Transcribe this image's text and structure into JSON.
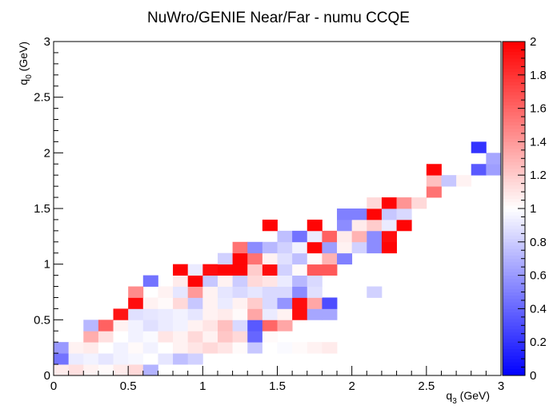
{
  "chart_data": {
    "type": "heatmap",
    "title": "NuWro/GENIE Near/Far - numu CCQE",
    "xlabel": {
      "main": "q",
      "sub": "3",
      "unit": " (GeV)"
    },
    "ylabel": {
      "main": "q",
      "sub": "0",
      "unit": " (GeV)"
    },
    "xlim": [
      0,
      3
    ],
    "ylim": [
      0,
      3
    ],
    "zlim": [
      0,
      2
    ],
    "nbins_x": 30,
    "nbins_y": 30,
    "x_ticks": [
      "0",
      "0.5",
      "1",
      "1.5",
      "2",
      "2.5",
      "3"
    ],
    "y_ticks": [
      "0",
      "0.5",
      "1",
      "1.5",
      "2",
      "2.5",
      "3"
    ],
    "z_ticks": [
      "0",
      "0.2",
      "0.4",
      "0.6",
      "0.8",
      "1",
      "1.2",
      "1.4",
      "1.6",
      "1.8",
      "2"
    ],
    "colorscale": {
      "low": "#0000ff",
      "mid": "#ffffff",
      "high": "#ff0000"
    },
    "cells": [
      [
        0,
        0,
        1.08
      ],
      [
        1,
        0,
        1.12
      ],
      [
        2,
        0,
        1.05
      ],
      [
        3,
        0,
        1.02
      ],
      [
        4,
        0,
        1.08
      ],
      [
        5,
        0,
        1.15
      ],
      [
        6,
        0,
        0.7
      ],
      [
        0,
        1,
        0.45
      ],
      [
        1,
        1,
        0.92
      ],
      [
        2,
        1,
        0.95
      ],
      [
        3,
        1,
        0.9
      ],
      [
        4,
        1,
        0.95
      ],
      [
        5,
        1,
        0.97
      ],
      [
        6,
        1,
        1.0
      ],
      [
        7,
        1,
        0.9
      ],
      [
        8,
        1,
        0.75
      ],
      [
        9,
        1,
        0.82
      ],
      [
        0,
        2,
        0.6
      ],
      [
        1,
        2,
        1.05
      ],
      [
        2,
        2,
        1.08
      ],
      [
        3,
        2,
        1.0
      ],
      [
        4,
        2,
        0.95
      ],
      [
        5,
        2,
        1.02
      ],
      [
        6,
        2,
        0.95
      ],
      [
        7,
        2,
        1.0
      ],
      [
        8,
        2,
        1.05
      ],
      [
        9,
        2,
        1.1
      ],
      [
        10,
        2,
        1.15
      ],
      [
        11,
        2,
        1.1
      ],
      [
        12,
        2,
        1.02
      ],
      [
        13,
        2,
        0.78
      ],
      [
        14,
        2,
        1.0
      ],
      [
        15,
        2,
        0.98
      ],
      [
        16,
        2,
        1.02
      ],
      [
        17,
        2,
        1.05
      ],
      [
        18,
        2,
        1.08
      ],
      [
        2,
        3,
        1.32
      ],
      [
        3,
        3,
        1.12
      ],
      [
        4,
        3,
        1.0
      ],
      [
        5,
        3,
        0.95
      ],
      [
        6,
        3,
        0.98
      ],
      [
        7,
        3,
        1.1
      ],
      [
        8,
        3,
        1.05
      ],
      [
        9,
        3,
        1.15
      ],
      [
        10,
        3,
        1.05
      ],
      [
        11,
        3,
        1.22
      ],
      [
        12,
        3,
        1.15
      ],
      [
        13,
        3,
        0.4
      ],
      [
        14,
        3,
        1.02
      ],
      [
        2,
        4,
        0.72
      ],
      [
        3,
        4,
        1.62
      ],
      [
        4,
        4,
        1.05
      ],
      [
        5,
        4,
        0.95
      ],
      [
        6,
        4,
        0.88
      ],
      [
        7,
        4,
        0.92
      ],
      [
        8,
        4,
        0.95
      ],
      [
        9,
        4,
        1.05
      ],
      [
        10,
        4,
        1.1
      ],
      [
        11,
        4,
        1.25
      ],
      [
        12,
        4,
        0.85
      ],
      [
        13,
        4,
        0.35
      ],
      [
        14,
        4,
        1.6
      ],
      [
        15,
        4,
        1.35
      ],
      [
        4,
        5,
        1.92
      ],
      [
        5,
        5,
        0.88
      ],
      [
        6,
        5,
        0.9
      ],
      [
        7,
        5,
        0.92
      ],
      [
        8,
        5,
        0.95
      ],
      [
        9,
        5,
        0.9
      ],
      [
        10,
        5,
        1.05
      ],
      [
        11,
        5,
        1.08
      ],
      [
        12,
        5,
        1.02
      ],
      [
        13,
        5,
        1.35
      ],
      [
        14,
        5,
        0.92
      ],
      [
        15,
        5,
        1.05
      ],
      [
        16,
        5,
        1.95
      ],
      [
        17,
        5,
        0.65
      ],
      [
        18,
        5,
        0.65
      ],
      [
        5,
        6,
        1.95
      ],
      [
        6,
        6,
        1.05
      ],
      [
        7,
        6,
        1.02
      ],
      [
        8,
        6,
        1.15
      ],
      [
        9,
        6,
        0.78
      ],
      [
        10,
        6,
        1.05
      ],
      [
        11,
        6,
        0.92
      ],
      [
        12,
        6,
        1.05
      ],
      [
        13,
        6,
        1.2
      ],
      [
        14,
        6,
        0.85
      ],
      [
        15,
        6,
        0.58
      ],
      [
        16,
        6,
        1.95
      ],
      [
        17,
        6,
        1.35
      ],
      [
        18,
        6,
        0.3
      ],
      [
        5,
        7,
        1.45
      ],
      [
        7,
        7,
        1.05
      ],
      [
        8,
        7,
        0.9
      ],
      [
        9,
        7,
        1.4
      ],
      [
        10,
        7,
        1.05
      ],
      [
        11,
        7,
        0.9
      ],
      [
        12,
        7,
        0.85
      ],
      [
        13,
        7,
        0.9
      ],
      [
        14,
        7,
        0.85
      ],
      [
        15,
        7,
        0.85
      ],
      [
        16,
        7,
        0.55
      ],
      [
        17,
        7,
        0.88
      ],
      [
        21,
        7,
        0.82
      ],
      [
        6,
        8,
        0.45
      ],
      [
        8,
        8,
        1.08
      ],
      [
        9,
        8,
        1.98
      ],
      [
        10,
        8,
        0.78
      ],
      [
        11,
        8,
        1.05
      ],
      [
        12,
        8,
        0.8
      ],
      [
        13,
        8,
        1.15
      ],
      [
        14,
        8,
        1.1
      ],
      [
        15,
        8,
        0.92
      ],
      [
        16,
        8,
        0.72
      ],
      [
        17,
        8,
        0.85
      ],
      [
        8,
        9,
        1.98
      ],
      [
        9,
        9,
        0.92
      ],
      [
        10,
        9,
        1.95
      ],
      [
        11,
        9,
        1.98
      ],
      [
        12,
        9,
        1.98
      ],
      [
        13,
        9,
        1.2
      ],
      [
        14,
        9,
        1.95
      ],
      [
        15,
        9,
        0.82
      ],
      [
        16,
        9,
        1.02
      ],
      [
        17,
        9,
        1.65
      ],
      [
        18,
        9,
        1.65
      ],
      [
        11,
        10,
        0.82
      ],
      [
        12,
        10,
        1.98
      ],
      [
        13,
        10,
        1.55
      ],
      [
        14,
        10,
        1.05
      ],
      [
        15,
        10,
        0.88
      ],
      [
        16,
        10,
        0.75
      ],
      [
        17,
        10,
        1.02
      ],
      [
        18,
        10,
        1.3
      ],
      [
        19,
        10,
        0.5
      ],
      [
        12,
        11,
        1.55
      ],
      [
        13,
        11,
        0.55
      ],
      [
        14,
        11,
        0.72
      ],
      [
        15,
        11,
        0.82
      ],
      [
        16,
        11,
        0.95
      ],
      [
        17,
        11,
        1.98
      ],
      [
        18,
        11,
        0.62
      ],
      [
        19,
        11,
        1.05
      ],
      [
        20,
        11,
        0.82
      ],
      [
        21,
        11,
        0.55
      ],
      [
        22,
        11,
        1.98
      ],
      [
        15,
        12,
        0.75
      ],
      [
        16,
        12,
        0.45
      ],
      [
        17,
        12,
        0.92
      ],
      [
        18,
        12,
        1.62
      ],
      [
        19,
        12,
        1.08
      ],
      [
        20,
        12,
        1.3
      ],
      [
        21,
        12,
        0.55
      ],
      [
        22,
        12,
        1.95
      ],
      [
        14,
        13,
        1.98
      ],
      [
        17,
        13,
        1.98
      ],
      [
        19,
        13,
        0.55
      ],
      [
        20,
        13,
        1.08
      ],
      [
        21,
        13,
        1.2
      ],
      [
        22,
        13,
        0.92
      ],
      [
        23,
        13,
        1.98
      ],
      [
        19,
        14,
        0.5
      ],
      [
        20,
        14,
        0.5
      ],
      [
        21,
        14,
        1.98
      ],
      [
        22,
        14,
        0.78
      ],
      [
        23,
        14,
        0.85
      ],
      [
        21,
        15,
        1.15
      ],
      [
        22,
        15,
        1.98
      ],
      [
        23,
        15,
        1.42
      ],
      [
        24,
        15,
        1.15
      ],
      [
        25,
        16,
        1.55
      ],
      [
        25,
        17,
        1.25
      ],
      [
        26,
        17,
        0.78
      ],
      [
        27,
        17,
        1.05
      ],
      [
        25,
        18,
        1.98
      ],
      [
        28,
        18,
        0.35
      ],
      [
        29,
        18,
        0.62
      ],
      [
        29,
        19,
        0.65
      ],
      [
        28,
        20,
        0.2
      ]
    ]
  }
}
